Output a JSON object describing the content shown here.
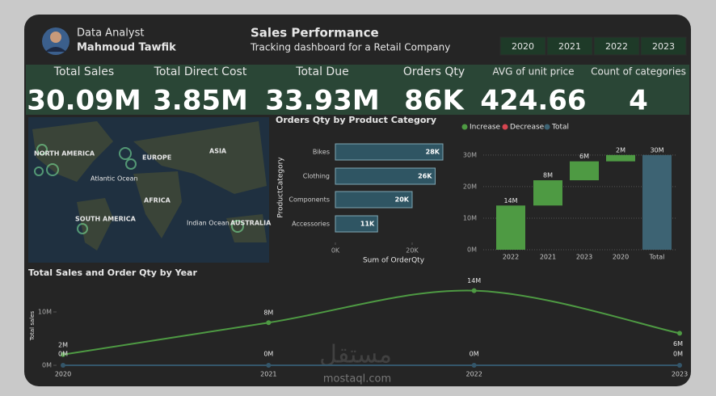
{
  "header": {
    "role": "Data Analyst",
    "name": "Mahmoud Tawfik",
    "title": "Sales Performance",
    "subtitle": "Tracking dashboard for a Retail Company"
  },
  "year_filters": [
    "2020",
    "2021",
    "2022",
    "2023"
  ],
  "kpis": [
    {
      "label": "Total Sales",
      "value": "30.09M"
    },
    {
      "label": "Total Direct Cost",
      "value": "3.85M"
    },
    {
      "label": "Total Due",
      "value": "33.93M"
    },
    {
      "label": "Orders Qty",
      "value": "86K"
    },
    {
      "label": "AVG of unit price",
      "value": "424.66"
    },
    {
      "label": "Count of categories",
      "value": "4"
    }
  ],
  "map": {
    "labels": [
      "NORTH AMERICA",
      "EUROPE",
      "ASIA",
      "Atlantic Ocean",
      "AFRICA",
      "SOUTH AMERICA",
      "Indian Ocean",
      "AUSTRALIA"
    ]
  },
  "watermark": [
    "مستقل",
    "mostaql.com"
  ],
  "chart_data": [
    {
      "type": "bar",
      "orientation": "horizontal",
      "title": "Orders Qty by Product Category",
      "categories": [
        "Bikes",
        "Clothing",
        "Components",
        "Accessories"
      ],
      "values": [
        28000,
        26000,
        20000,
        11000
      ],
      "value_labels": [
        "28K",
        "26K",
        "20K",
        "11K"
      ],
      "color": "#2f5563",
      "xlim": [
        0,
        28000
      ],
      "xticks": [
        {
          "value": 0,
          "label": "0K"
        },
        {
          "value": 20000,
          "label": "20K"
        }
      ],
      "x_label": "Sum of OrderQty",
      "y_label": "ProductCategory"
    },
    {
      "type": "waterfall",
      "legend": [
        {
          "name": "Increase",
          "color": "#4e9a43"
        },
        {
          "name": "Decrease",
          "color": "#d64550"
        },
        {
          "name": "Total",
          "color": "#3d6373"
        }
      ],
      "categories": [
        "2022",
        "2021",
        "2023",
        "2020",
        "Total"
      ],
      "measure": [
        "increase",
        "increase",
        "increase",
        "increase",
        "total"
      ],
      "values": [
        14000000,
        8000000,
        6000000,
        2000000,
        30000000
      ],
      "value_labels": [
        "14M",
        "8M",
        "6M",
        "2M",
        "30M"
      ],
      "ylim": [
        0,
        32000000
      ],
      "yticks": [
        {
          "value": 0,
          "label": "0M"
        },
        {
          "value": 10000000,
          "label": "10M"
        },
        {
          "value": 20000000,
          "label": "20M"
        },
        {
          "value": 30000000,
          "label": "30M"
        }
      ],
      "grid": true
    },
    {
      "type": "line",
      "title": "Total Sales and Order Qty by Year",
      "y_label": "Total sales",
      "categories": [
        "2020",
        "2021",
        "2022",
        "2023"
      ],
      "series": [
        {
          "color": "#4e9a43",
          "values": [
            2000000,
            8000000,
            14000000,
            6000000
          ],
          "value_labels": [
            "2M",
            "8M",
            "14M",
            "6M"
          ]
        },
        {
          "color": "#34566a",
          "values": [
            0,
            0,
            0,
            0
          ],
          "value_labels": [
            "0M",
            "0M",
            "0M",
            "0M"
          ]
        }
      ],
      "ylim": [
        0,
        15000000
      ],
      "yticks": [
        {
          "value": 0,
          "label": "0M"
        },
        {
          "value": 10000000,
          "label": "10M"
        }
      ]
    }
  ]
}
